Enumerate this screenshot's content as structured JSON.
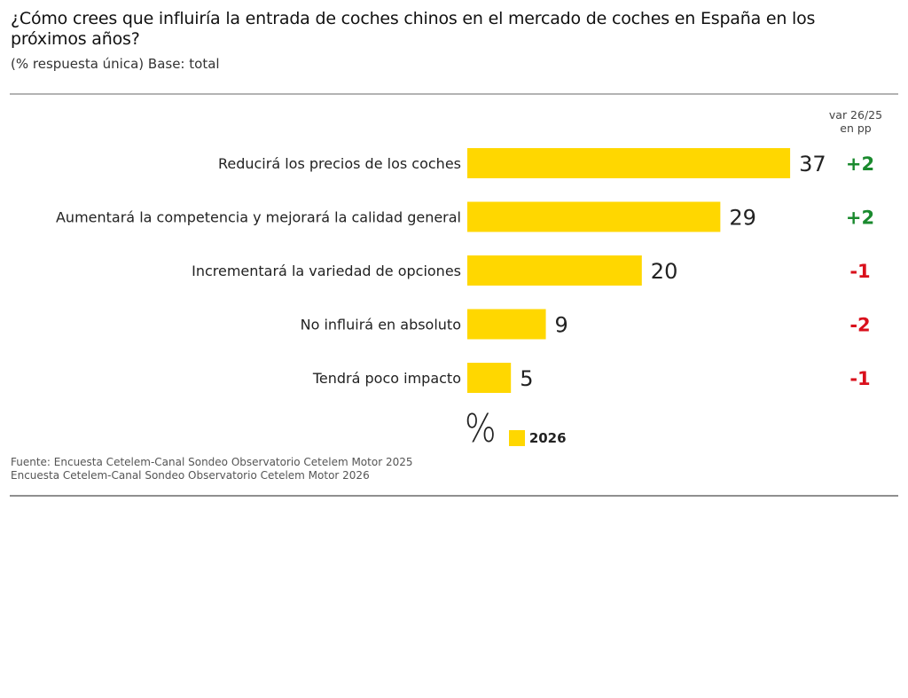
{
  "header": {
    "title": "¿Cómo crees que influiría la entrada de coches chinos en el mercado de coches en España en los próximos años?",
    "subtitle": "(% respuesta única) Base: total"
  },
  "var_header": {
    "line1": "var 26/25",
    "line2": "en pp"
  },
  "legend": {
    "unit_symbol": "%",
    "series_label": "2026"
  },
  "source": {
    "line1": "Fuente: Encuesta Cetelem-Canal Sondeo Observatorio Cetelem Motor 2025",
    "line2": "Encuesta Cetelem-Canal Sondeo Observatorio Cetelem Motor 2026"
  },
  "colors": {
    "bar": "#FFD700",
    "positive": "#1a8a2e",
    "negative": "#d9101c",
    "value_text": "#222222",
    "label_text": "#222222"
  },
  "chart_data": {
    "type": "bar",
    "orientation": "horizontal",
    "title": "¿Cómo crees que influiría la entrada de coches chinos en el mercado de coches en España en los próximos años?",
    "subtitle": "(% respuesta única) Base: total",
    "xlabel": "%",
    "ylabel": "",
    "xlim": [
      0,
      37
    ],
    "grid": false,
    "legend_position": "bottom-center",
    "categories": [
      "Reducirá los precios de los coches",
      "Aumentará la competencia y mejorará la calidad general",
      "Incrementará la variedad de opciones",
      "No influirá en absoluto",
      "Tendrá poco impacto"
    ],
    "series": [
      {
        "name": "2026",
        "values": [
          37,
          29,
          20,
          9,
          5
        ]
      }
    ],
    "variation_header": "var 26/25 en pp",
    "variation_pp": [
      "+2",
      "+2",
      "-1",
      "-2",
      "-1"
    ]
  }
}
